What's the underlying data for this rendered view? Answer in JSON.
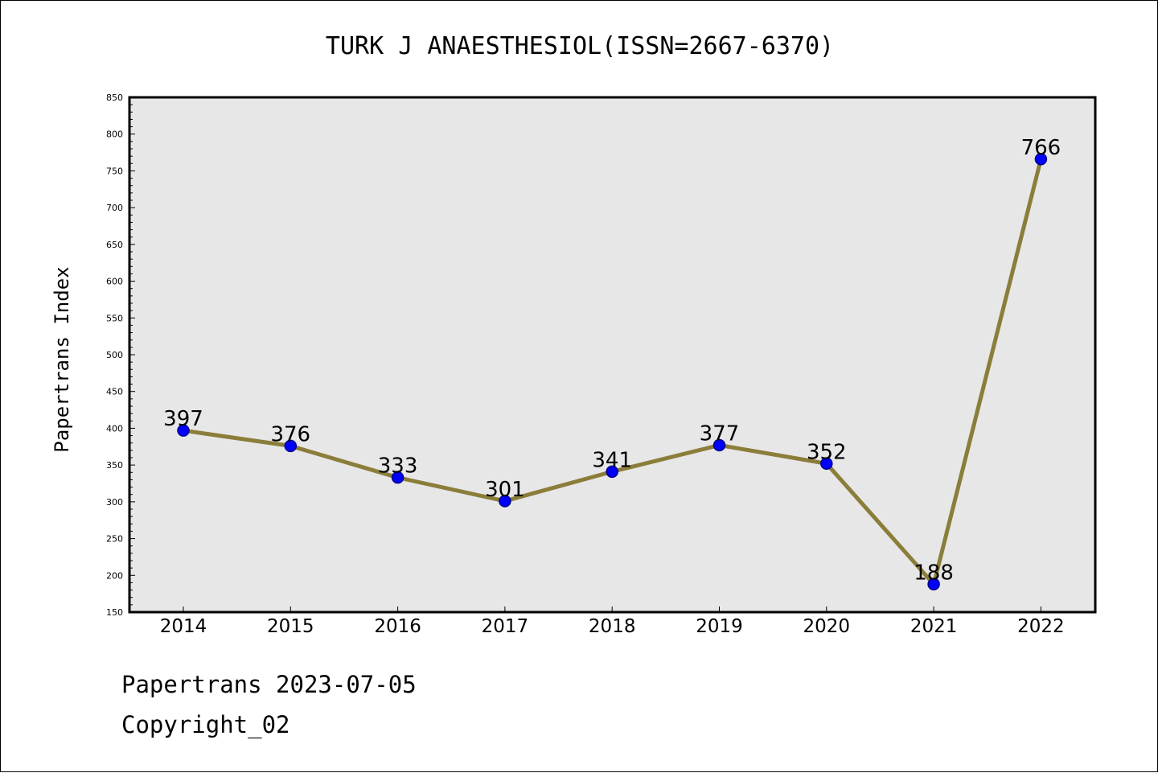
{
  "colors": {
    "plot_background": "#e7e7e7",
    "line": "#8b7d3a",
    "marker_fill": "#0000ff",
    "marker_edge": "#00008b"
  },
  "footer": {
    "date_line": "Papertrans 2023-07-05",
    "copyright_line": "Copyright_02"
  },
  "chart_data": {
    "type": "line",
    "title": "TURK J ANAESTHESIOL(ISSN=2667-6370)",
    "xlabel": "",
    "ylabel": "Papertrans Index",
    "ylim": [
      150,
      850
    ],
    "y_ticks": [
      150,
      200,
      250,
      300,
      350,
      400,
      450,
      500,
      550,
      600,
      650,
      700,
      750,
      800,
      850
    ],
    "y_minor_step": 10,
    "grid": false,
    "legend": "none",
    "categories": [
      "2014",
      "2015",
      "2016",
      "2017",
      "2018",
      "2019",
      "2020",
      "2021",
      "2022"
    ],
    "series": [
      {
        "values": [
          397,
          376,
          333,
          301,
          341,
          377,
          352,
          188,
          766
        ],
        "data_labels": [
          "397",
          "376",
          "333",
          "301",
          "341",
          "377",
          "352",
          "188",
          "766"
        ]
      }
    ]
  }
}
